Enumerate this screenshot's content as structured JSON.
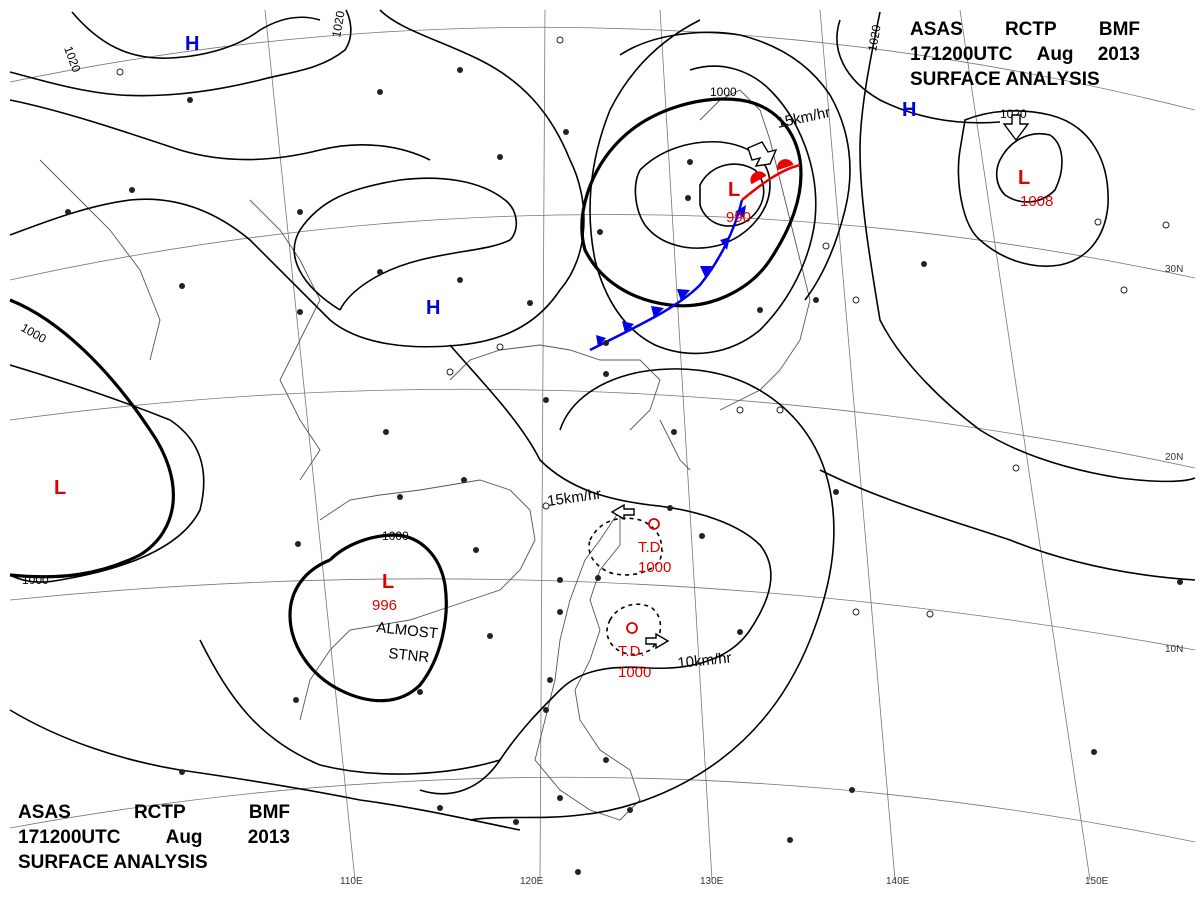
{
  "header": {
    "line1": [
      "ASAS",
      "RCTP",
      "BMF"
    ],
    "line2": [
      "171200UTC",
      "Aug",
      "2013"
    ],
    "line3": "SURFACE ANALYSIS"
  },
  "grid_labels": {
    "longitudes": [
      "110E",
      "120E",
      "130E",
      "140E",
      "150E"
    ],
    "latitudes": [
      "30N",
      "20N",
      "10N"
    ]
  },
  "isobar_labels": [
    "1020",
    "1020",
    "1020",
    "1000",
    "1000",
    "1000",
    "1000",
    "1000",
    "1020"
  ],
  "systems": [
    {
      "type": "H",
      "value": ""
    },
    {
      "type": "H",
      "value": ""
    },
    {
      "type": "H",
      "value": ""
    },
    {
      "type": "L",
      "value": "990"
    },
    {
      "type": "L",
      "value": "1008"
    },
    {
      "type": "L",
      "value": ""
    },
    {
      "type": "L",
      "value": "996"
    }
  ],
  "tropical_depressions": [
    {
      "label": "T.D.",
      "value": "1000",
      "motion": "15km/hr"
    },
    {
      "label": "T.D.",
      "value": "1000",
      "motion": "10km/hr"
    }
  ],
  "annotations": {
    "low_motion": "15km/hr",
    "almost_stnr": [
      "ALMOST",
      "STNR"
    ]
  },
  "colors": {
    "high": "#0000dd",
    "low": "#e00000",
    "cold_front": "#0000ee",
    "warm_front": "#ee0000",
    "isobar": "#000000"
  }
}
